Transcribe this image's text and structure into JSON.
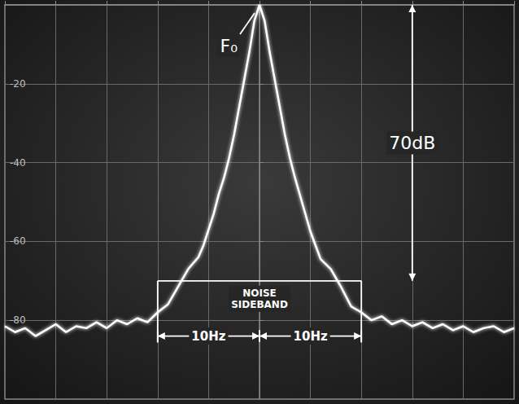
{
  "chart_data": {
    "type": "line",
    "x": [
      -25,
      -24,
      -23,
      -22,
      -21,
      -20,
      -19,
      -18,
      -17,
      -16,
      -15,
      -14,
      -13,
      -12,
      -11,
      -10,
      -9,
      -8,
      -7,
      -6,
      -5.5,
      -5,
      -4.5,
      -4,
      -3.5,
      -3,
      -2.5,
      -2,
      -1.5,
      -1,
      -0.5,
      0,
      0.5,
      1,
      1.5,
      2,
      2.5,
      3,
      3.5,
      4,
      4.5,
      5,
      5.5,
      6,
      7,
      8,
      9,
      10,
      11,
      12,
      13,
      14,
      15,
      16,
      17,
      18,
      19,
      20,
      21,
      22,
      23,
      24,
      25
    ],
    "values": [
      -81.5,
      -83,
      -82,
      -84,
      -82.5,
      -81,
      -83,
      -81.5,
      -82,
      -80.5,
      -82,
      -80,
      -81,
      -79.5,
      -80.5,
      -78,
      -76,
      -71.5,
      -67,
      -64,
      -61,
      -57,
      -53,
      -48,
      -44,
      -39,
      -33,
      -26,
      -19,
      -12,
      -4,
      0,
      -4,
      -12,
      -19,
      -26,
      -33,
      -39,
      -44,
      -48.5,
      -53,
      -57.5,
      -61,
      -64.5,
      -67,
      -71.5,
      -76.5,
      -78,
      -80,
      -79,
      -81,
      -80,
      -81.5,
      -80.5,
      -82,
      -81,
      -82.5,
      -81.5,
      -83,
      -82,
      -81.5,
      -83,
      -82
    ],
    "color": "#ffffff",
    "xlim": [
      -25,
      25
    ],
    "xticks": [
      -25,
      -20,
      -15,
      -10,
      -5,
      0,
      5,
      10,
      15,
      20,
      25
    ],
    "ylim": [
      -100,
      0
    ],
    "yticks": [
      -80,
      -60,
      -40,
      -20
    ],
    "grid": true,
    "tick_labels": "y",
    "annotations": [
      {
        "text": "F₀",
        "x": 0,
        "y": 0
      },
      {
        "text": "70dB",
        "x": 15,
        "y_from": 0,
        "y_to": -70
      },
      {
        "text": "NOISE SIDEBAND",
        "x_from": -10,
        "x_to": 10,
        "y_from": -70,
        "y_to": -84
      },
      {
        "text": "10Hz",
        "x_from": -10,
        "x_to": 0,
        "y": -84
      },
      {
        "text": "10Hz",
        "x_from": 0,
        "x_to": 10,
        "y": -84
      }
    ]
  }
}
